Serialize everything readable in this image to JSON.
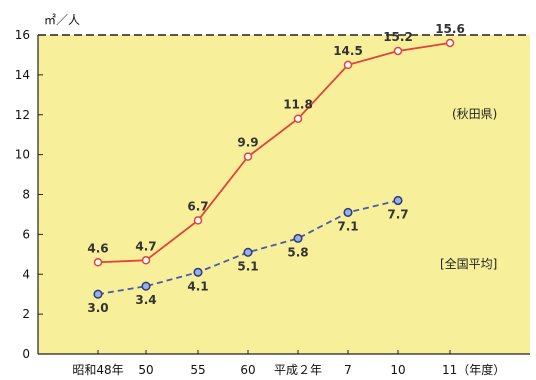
{
  "chart_data": {
    "type": "line",
    "title": "",
    "unit_label": "㎡／人",
    "xlabel": "",
    "ylabel": "",
    "ylim": [
      0,
      16
    ],
    "yticks": [
      "0",
      "2",
      "4",
      "6",
      "8",
      "10",
      "12",
      "14",
      "16"
    ],
    "categories": [
      "昭和48年",
      "50",
      "55",
      "60",
      "平成２年",
      "7",
      "10",
      "11（年度）"
    ],
    "background_color": "#f8ef9a",
    "grid": false,
    "series": [
      {
        "name": "(秋田県)",
        "color": "#e0433a",
        "style": "solid",
        "values": [
          4.6,
          4.7,
          6.7,
          9.9,
          11.8,
          14.5,
          15.2,
          15.6
        ],
        "labels": [
          "4.6",
          "4.7",
          "6.7",
          "9.9",
          "11.8",
          "14.5",
          "15.2",
          "15.6"
        ]
      },
      {
        "name": "[全国平均]",
        "color": "#4a5aa8",
        "style": "dashed",
        "values": [
          3.0,
          3.4,
          4.1,
          5.1,
          5.8,
          7.1,
          7.7,
          null
        ],
        "labels": [
          "3.0",
          "3.4",
          "4.1",
          "5.1",
          "5.8",
          "7.1",
          "7.7",
          null
        ]
      }
    ]
  }
}
